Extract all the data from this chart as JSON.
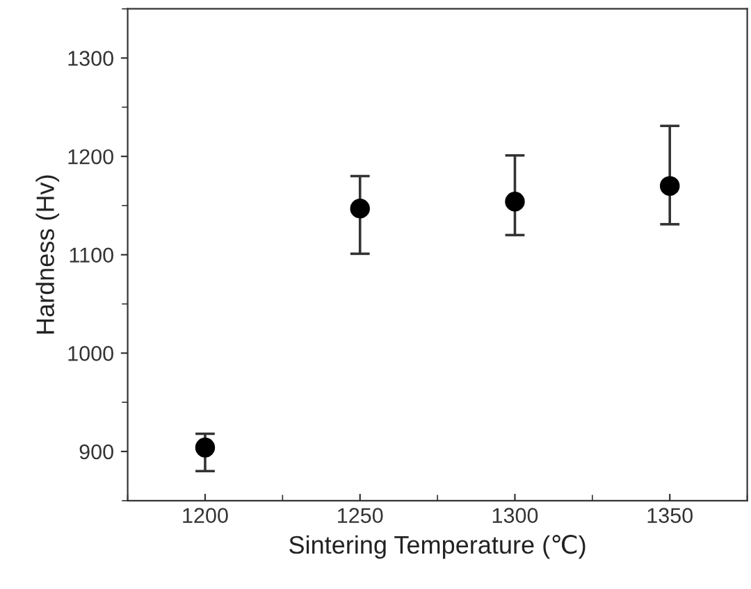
{
  "chart_data": {
    "type": "scatter",
    "xlabel": "Sintering Temperature (℃)",
    "ylabel": "Hardness (Hv)",
    "x": [
      1200,
      1250,
      1300,
      1350
    ],
    "values": [
      904,
      1147,
      1154,
      1170
    ],
    "errors": [
      [
        880,
        918
      ],
      [
        1101,
        1180
      ],
      [
        1120,
        1201
      ],
      [
        1131,
        1231
      ]
    ],
    "color": "#000000",
    "marker": "circle",
    "xlim": [
      1175,
      1375
    ],
    "xticks": [
      1200,
      1250,
      1300,
      1350
    ],
    "ylim": [
      850,
      1350
    ],
    "yticks": [
      900,
      1000,
      1100,
      1200,
      1300
    ],
    "grid": false,
    "legend": false
  }
}
